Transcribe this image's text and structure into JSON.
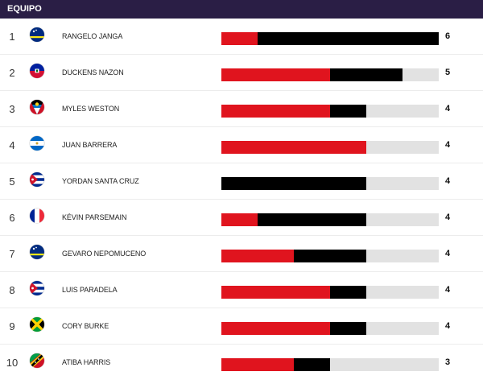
{
  "header": {
    "title": "EQUIPO"
  },
  "scale_max": 6,
  "colors": {
    "header_bg": "#2a1e45",
    "red": "#e0141e",
    "black": "#000000",
    "track": "#e2e2e2"
  },
  "players": [
    {
      "rank": "1",
      "name": "RANGELO JANGA",
      "flag": "curacao",
      "value": "6",
      "red": 1,
      "black": 5
    },
    {
      "rank": "2",
      "name": "DUCKENS NAZON",
      "flag": "haiti",
      "value": "5",
      "red": 3,
      "black": 2
    },
    {
      "rank": "3",
      "name": "MYLES WESTON",
      "flag": "antigua-barbuda",
      "value": "4",
      "red": 3,
      "black": 1
    },
    {
      "rank": "4",
      "name": "JUAN BARRERA",
      "flag": "nicaragua",
      "value": "4",
      "red": 4,
      "black": 0
    },
    {
      "rank": "5",
      "name": "YORDAN SANTA CRUZ",
      "flag": "cuba",
      "value": "4",
      "red": 0,
      "black": 4
    },
    {
      "rank": "6",
      "name": "KÉVIN PARSEMAIN",
      "flag": "france",
      "value": "4",
      "red": 1,
      "black": 3
    },
    {
      "rank": "7",
      "name": "GEVARO NEPOMUCENO",
      "flag": "curacao",
      "value": "4",
      "red": 2,
      "black": 2
    },
    {
      "rank": "8",
      "name": "LUIS PARADELA",
      "flag": "cuba",
      "value": "4",
      "red": 3,
      "black": 1
    },
    {
      "rank": "9",
      "name": "CORY BURKE",
      "flag": "jamaica",
      "value": "4",
      "red": 3,
      "black": 1
    },
    {
      "rank": "10",
      "name": "ATIBA HARRIS",
      "flag": "saint-kitts-nevis",
      "value": "3",
      "red": 2,
      "black": 1
    }
  ]
}
